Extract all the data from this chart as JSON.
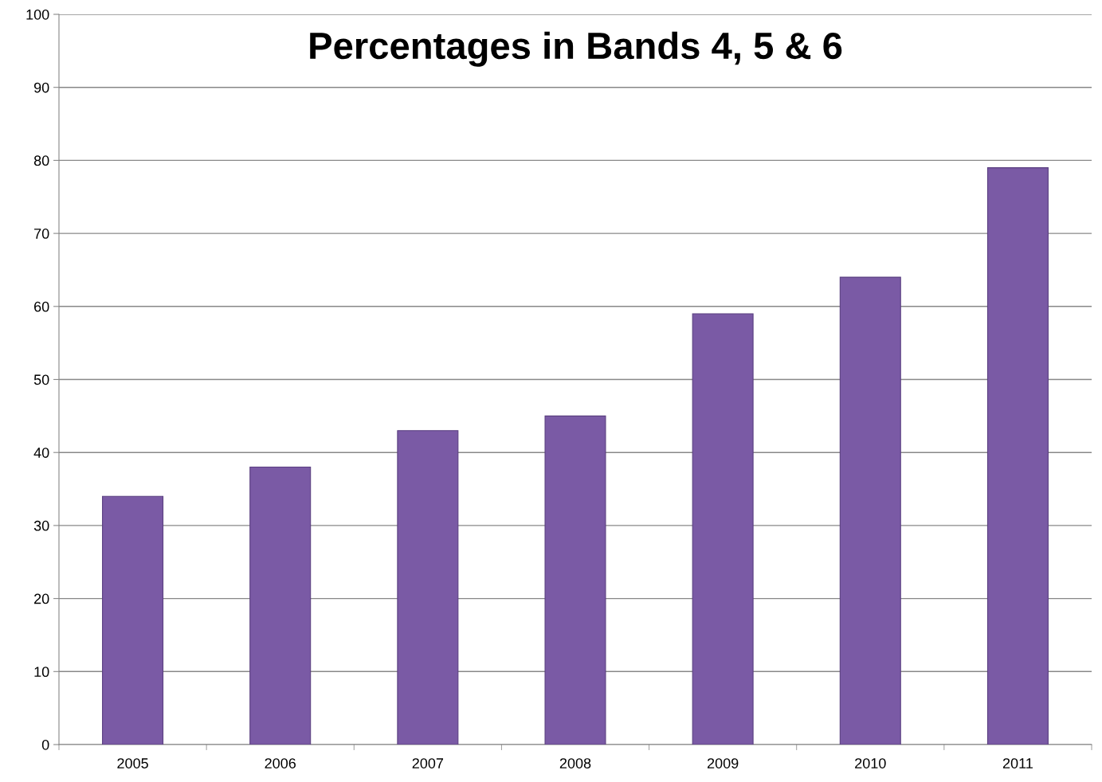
{
  "chart_data": {
    "type": "bar",
    "title": "Percentages in Bands 4, 5 & 6",
    "categories": [
      "2005",
      "2006",
      "2007",
      "2008",
      "2009",
      "2010",
      "2011"
    ],
    "values": [
      34,
      38,
      43,
      45,
      59,
      64,
      79
    ],
    "color": "#7a5aa5",
    "ylim": [
      0,
      100
    ],
    "yticks": [
      0,
      10,
      20,
      30,
      40,
      50,
      60,
      70,
      80,
      90,
      100
    ],
    "grid": "y"
  }
}
